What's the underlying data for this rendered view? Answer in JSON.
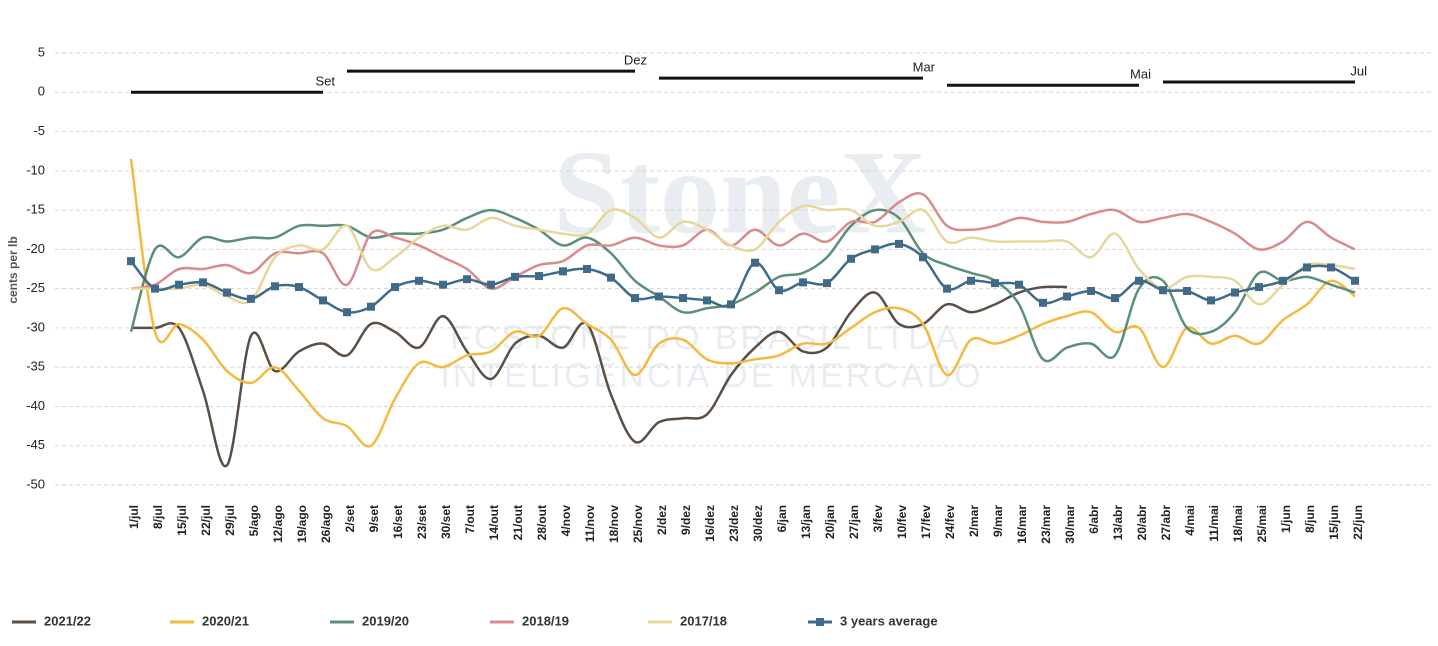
{
  "chart_data": {
    "type": "line",
    "y_label": "cents per lb",
    "watermark": [
      "StoneX",
      "FCSTONE DO BRASIL LTDA.",
      "INTELIGÊNCIA DE MERCADO"
    ],
    "categories": [
      "1/jul",
      "8/jul",
      "15/jul",
      "22/jul",
      "29/jul",
      "5/ago",
      "12/ago",
      "19/ago",
      "26/ago",
      "2/set",
      "9/set",
      "16/set",
      "23/set",
      "30/set",
      "7/out",
      "14/out",
      "21/out",
      "28/out",
      "4/nov",
      "11/nov",
      "18/nov",
      "25/nov",
      "2/dez",
      "9/dez",
      "16/dez",
      "23/dez",
      "30/dez",
      "6/jan",
      "13/jan",
      "20/jan",
      "27/jan",
      "3/fev",
      "10/fev",
      "17/fev",
      "24/fev",
      "2/mar",
      "9/mar",
      "16/mar",
      "23/mar",
      "30/mar",
      "6/abr",
      "13/abr",
      "20/abr",
      "27/abr",
      "4/mai",
      "11/mai",
      "18/mai",
      "25/mai",
      "1/jun",
      "8/jun",
      "15/jun",
      "22/jun"
    ],
    "ylim": [
      -50,
      5
    ],
    "yticks": [
      5,
      0,
      -5,
      -10,
      -15,
      -20,
      -25,
      -30,
      -35,
      -40,
      -45,
      -50
    ],
    "grid": true,
    "legend": "bottom",
    "annotations": [
      {
        "text": "Set",
        "value": 0,
        "start": "1/jul",
        "end": "26/ago"
      },
      {
        "text": "Dez",
        "value": 2.7,
        "start": "2/set",
        "end": "25/nov"
      },
      {
        "text": "Mar",
        "value": 1.8,
        "start": "2/dez",
        "end": "17/fev"
      },
      {
        "text": "Mai",
        "value": 0.9,
        "start": "24/fev",
        "end": "20/abr"
      },
      {
        "text": "Jul",
        "value": 1.3,
        "start": "27/abr",
        "end": "22/jun"
      }
    ],
    "series": [
      {
        "name": "2021/22",
        "color": "#5b4f45",
        "values": [
          -30,
          -30,
          -30,
          -38,
          -47.5,
          -31,
          -35.5,
          -33,
          -32,
          -33.5,
          -29.5,
          -30.5,
          -32.5,
          -28.5,
          -33,
          -36.5,
          -32,
          -31,
          -32.5,
          -29.5,
          -38.5,
          -44.5,
          -42,
          -41.5,
          -41,
          -36,
          -32.5,
          -30.5,
          -33,
          -32.5,
          -28,
          -25.5,
          -29.5,
          -29.5,
          -27,
          -28,
          -27,
          -25.5,
          -24.8,
          -24.8,
          null,
          null,
          null,
          null,
          null,
          null,
          null,
          null,
          null,
          null,
          null,
          null
        ]
      },
      {
        "name": "2020/21",
        "color": "#f5b942",
        "values": [
          -8.5,
          -30.5,
          -29.5,
          -31.5,
          -35.5,
          -37,
          -35,
          -38,
          -41.5,
          -42.5,
          -45,
          -39,
          -34.5,
          -35,
          -33.5,
          -33,
          -30.5,
          -31,
          -27.5,
          -29.5,
          -31.5,
          -36,
          -32,
          -31.5,
          -34,
          -34.5,
          -34,
          -33.5,
          -32,
          -32,
          -30,
          -28,
          -27.5,
          -29.5,
          -36,
          -31.5,
          -32,
          -31,
          -29.5,
          -28.5,
          -28,
          -30.5,
          -30,
          -35,
          -30,
          -32,
          -31,
          -32,
          -29,
          -27,
          -24,
          -26
        ]
      },
      {
        "name": "2019/20",
        "color": "#5a8f78",
        "values": [
          -30.5,
          -20,
          -21,
          -18.5,
          -19,
          -18.5,
          -18.5,
          -17,
          -17,
          -17,
          -18.5,
          -18,
          -18,
          -17.5,
          -16,
          -15,
          -16,
          -17.5,
          -19.5,
          -18.5,
          -20.5,
          -24,
          -26,
          -28,
          -27.5,
          -27,
          -25.5,
          -23.5,
          -23,
          -21,
          -17,
          -15,
          -16,
          -20.5,
          -22,
          -23,
          -24,
          -27,
          -34,
          -32.5,
          -32,
          -33.5,
          -25,
          -24,
          -30,
          -30.5,
          -28,
          -23,
          -24,
          -23.5,
          -24.5,
          -25.5
        ]
      },
      {
        "name": "2018/19",
        "color": "#d98b8b",
        "values": [
          -25,
          -24.5,
          -22.5,
          -22.5,
          -22,
          -23,
          -20.5,
          -20.5,
          -20.5,
          -24.5,
          -18,
          -18.5,
          -19.5,
          -21,
          -22.5,
          -25,
          -23.5,
          -22,
          -21.5,
          -19.5,
          -19.5,
          -18.5,
          -19.5,
          -19.5,
          -17.5,
          -19.5,
          -17.5,
          -19.5,
          -18,
          -19,
          -16.5,
          -16.5,
          -14,
          -13,
          -17,
          -17.5,
          -17,
          -16,
          -16.5,
          -16.5,
          -15.5,
          -15,
          -16.5,
          -16,
          -15.5,
          -16.5,
          -18,
          -20,
          -19,
          -16.5,
          -18.5,
          -20
        ]
      },
      {
        "name": "2017/18",
        "color": "#e6d79a",
        "values": [
          -25,
          -25,
          -25,
          -24.5,
          -26,
          -26.5,
          -21,
          -19.5,
          -20,
          -17,
          -22.5,
          -21,
          -18.5,
          -17,
          -17.5,
          -16,
          -17,
          -17.5,
          -18,
          -18,
          -15,
          -16,
          -18.5,
          -16.5,
          -17.5,
          -19.5,
          -20,
          -16.5,
          -14.5,
          -15,
          -15,
          -17,
          -16.5,
          -15,
          -19,
          -18.5,
          -19,
          -19,
          -19,
          -19,
          -21,
          -18,
          -22.5,
          -25,
          -23.5,
          -23.5,
          -24,
          -27,
          -24.5,
          -22,
          -22,
          -22.5
        ]
      },
      {
        "name": "3 years average",
        "color": "#3f6b88",
        "marker": "square",
        "values": [
          -21.5,
          -25,
          -24.5,
          -24.2,
          -25.5,
          -26.3,
          -24.7,
          -24.8,
          -26.5,
          -28,
          -27.3,
          -24.8,
          -24,
          -24.5,
          -23.8,
          -24.5,
          -23.5,
          -23.4,
          -22.8,
          -22.5,
          -23.6,
          -26.2,
          -26,
          -26.2,
          -26.5,
          -27,
          -21.7,
          -25.2,
          -24.2,
          -24.3,
          -21.2,
          -20,
          -19.3,
          -21,
          -25,
          -24,
          -24.3,
          -24.5,
          -26.8,
          -26,
          -25.3,
          -26.2,
          -24,
          -25.2,
          -25.3,
          -26.5,
          -25.5,
          -24.8,
          -24,
          -22.3,
          -22.3,
          -24
        ]
      }
    ]
  }
}
